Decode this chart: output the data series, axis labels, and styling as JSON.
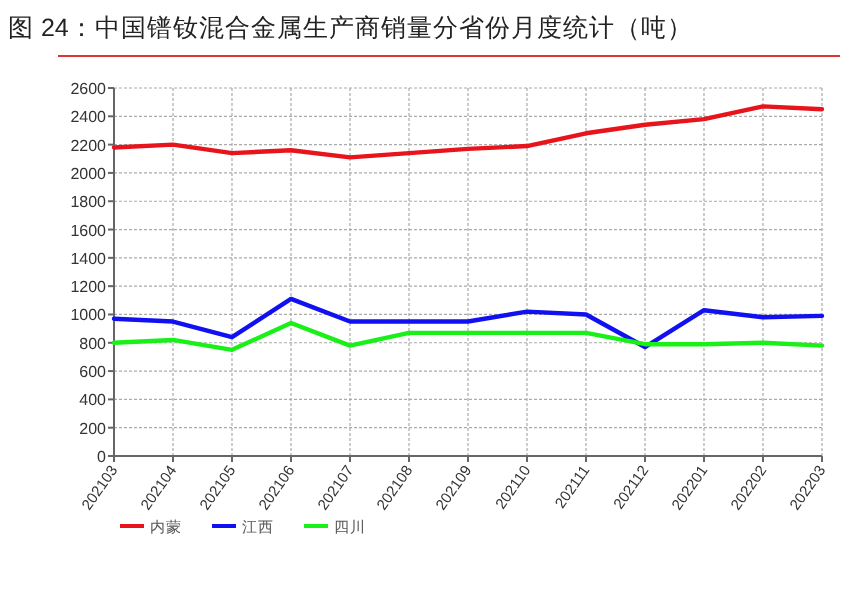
{
  "chart_data": {
    "type": "line",
    "title": "图 24：中国镨钕混合金属生产商销量分省份月度统计（吨）",
    "categories": [
      "202103",
      "202104",
      "202105",
      "202106",
      "202107",
      "202108",
      "202109",
      "202110",
      "202111",
      "202112",
      "202201",
      "202202",
      "202203"
    ],
    "series": [
      {
        "name": "内蒙",
        "color": "#e8141c",
        "values": [
          2180,
          2200,
          2140,
          2160,
          2110,
          2140,
          2170,
          2190,
          2280,
          2340,
          2380,
          2470,
          2450
        ]
      },
      {
        "name": "江西",
        "color": "#1010f0",
        "values": [
          970,
          950,
          840,
          1110,
          950,
          950,
          950,
          1020,
          1000,
          770,
          1030,
          980,
          990
        ]
      },
      {
        "name": "四川",
        "color": "#18f018",
        "values": [
          800,
          820,
          750,
          940,
          780,
          870,
          870,
          870,
          870,
          790,
          790,
          800,
          780
        ]
      }
    ],
    "ylim": [
      0,
      2600
    ],
    "yticks": [
      0,
      200,
      400,
      600,
      800,
      1000,
      1200,
      1400,
      1600,
      1800,
      2000,
      2200,
      2400,
      2600
    ],
    "grid": true,
    "legend": "bottom"
  }
}
